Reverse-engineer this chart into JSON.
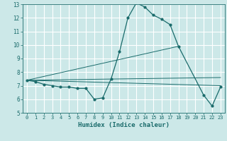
{
  "xlabel": "Humidex (Indice chaleur)",
  "xlim": [
    -0.5,
    23.5
  ],
  "ylim": [
    5,
    13
  ],
  "xticks": [
    0,
    1,
    2,
    3,
    4,
    5,
    6,
    7,
    8,
    9,
    10,
    11,
    12,
    13,
    14,
    15,
    16,
    17,
    18,
    19,
    20,
    21,
    22,
    23
  ],
  "yticks": [
    5,
    6,
    7,
    8,
    9,
    10,
    11,
    12,
    13
  ],
  "background_color": "#cce8e8",
  "grid_color": "#ffffff",
  "line_color": "#1a6b6b",
  "main_series_x": [
    0,
    1,
    2,
    3,
    4,
    5,
    6,
    7,
    8,
    9,
    10,
    11,
    12,
    13,
    14,
    15,
    16,
    17,
    18,
    21,
    22,
    23
  ],
  "main_series_y": [
    7.4,
    7.3,
    7.1,
    7.0,
    6.9,
    6.9,
    6.8,
    6.8,
    6.0,
    6.1,
    7.5,
    9.5,
    12.0,
    13.1,
    12.8,
    12.2,
    11.9,
    11.5,
    9.9,
    6.3,
    5.5,
    6.9
  ],
  "line1_x": [
    0,
    23
  ],
  "line1_y": [
    7.4,
    7.0
  ],
  "line2_x": [
    0,
    18
  ],
  "line2_y": [
    7.4,
    9.9
  ],
  "line3_x": [
    0,
    23
  ],
  "line3_y": [
    7.4,
    7.6
  ]
}
